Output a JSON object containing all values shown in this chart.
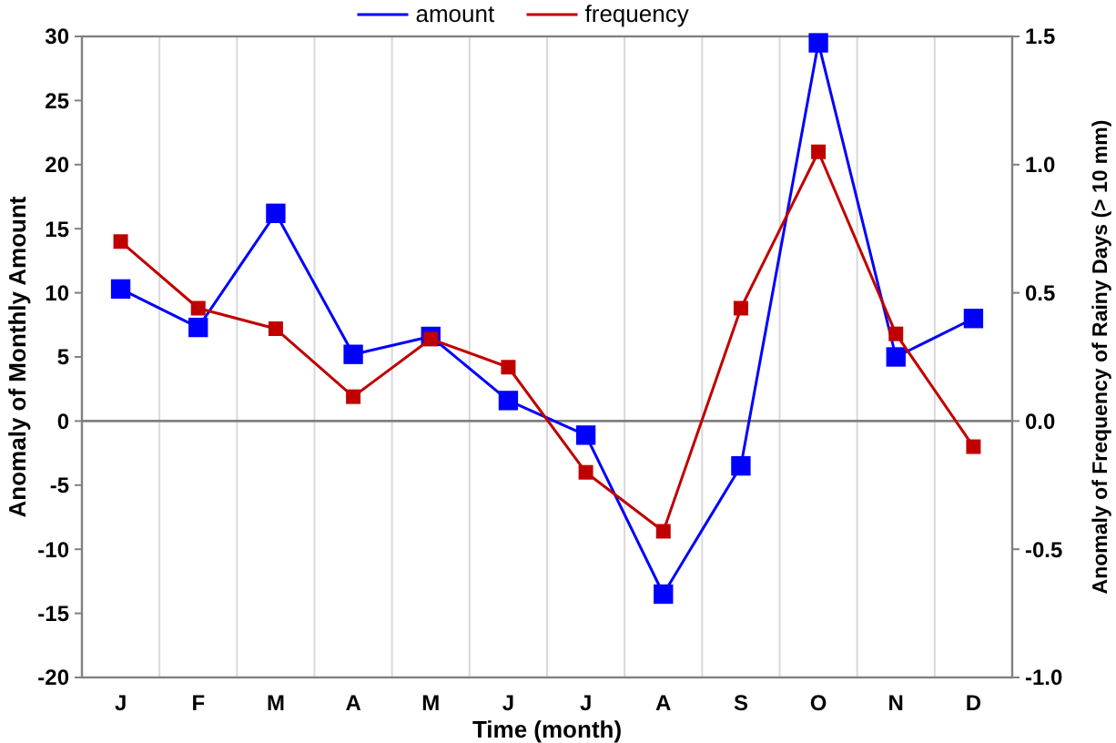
{
  "chart_data": {
    "type": "line",
    "xlabel": "Time (month)",
    "ylabel": "Anomaly of Monthly Amount",
    "y2label": "Anomaly of Frequency of Rainy Days (> 10 mm)",
    "categories": [
      "J",
      "F",
      "M",
      "A",
      "M",
      "J",
      "J",
      "A",
      "S",
      "O",
      "N",
      "D"
    ],
    "series": [
      {
        "name": "amount",
        "color": "#0000ff",
        "values": [
          10.3,
          7.3,
          16.2,
          5.2,
          6.6,
          1.6,
          -1.1,
          -13.5,
          -3.5,
          29.5,
          5.0,
          8.0
        ]
      },
      {
        "name": "frequency",
        "color": "#c00000",
        "axis": "y2",
        "values": [
          0.7,
          0.44,
          0.36,
          0.095,
          0.32,
          0.21,
          -0.2,
          -0.43,
          0.44,
          1.05,
          0.34,
          -0.1
        ]
      }
    ],
    "ylim": [
      -20,
      30
    ],
    "yticks": [
      -20,
      -15,
      -10,
      -5,
      0,
      5,
      10,
      15,
      20,
      25,
      30
    ],
    "y2lim": [
      -1,
      1.5
    ],
    "y2ticks": [
      {
        "value": -1,
        "label": "-1.0"
      },
      -0.5,
      {
        "value": 0,
        "label": "0.0"
      },
      0.5,
      {
        "value": 1,
        "label": "1.0"
      },
      1.5
    ],
    "ref_lines": [
      {
        "axis": "y",
        "value": 0,
        "color": "#808080"
      }
    ],
    "grid": "x",
    "legend": "top",
    "marker": "square",
    "line_style": "solid"
  }
}
